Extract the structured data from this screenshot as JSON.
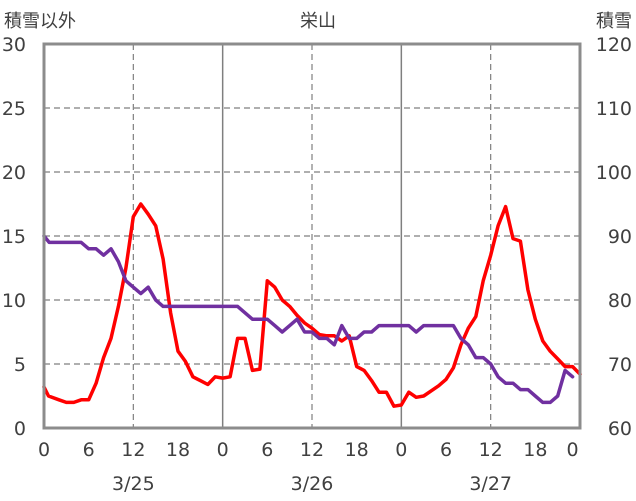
{
  "chart_data": {
    "type": "line",
    "title": "栄山",
    "y_left_label": "積雪以外",
    "y_right_label": "積雪",
    "y_left_range": [
      0,
      30
    ],
    "y_right_range": [
      60,
      120
    ],
    "y_left_ticks": [
      "0",
      "5",
      "10",
      "15",
      "20",
      "25",
      "30"
    ],
    "y_right_ticks": [
      "60",
      "70",
      "80",
      "90",
      "100",
      "110",
      "120"
    ],
    "x_range": [
      0,
      71
    ],
    "x_ticks": [
      {
        "hour": 0,
        "label": "0"
      },
      {
        "hour": 6,
        "label": "6"
      },
      {
        "hour": 12,
        "label": "12"
      },
      {
        "hour": 18,
        "label": "18"
      },
      {
        "hour": 24,
        "label": "0"
      },
      {
        "hour": 30,
        "label": "6"
      },
      {
        "hour": 36,
        "label": "12"
      },
      {
        "hour": 42,
        "label": "18"
      },
      {
        "hour": 48,
        "label": "0"
      },
      {
        "hour": 54,
        "label": "6"
      },
      {
        "hour": 60,
        "label": "12"
      },
      {
        "hour": 66,
        "label": "18"
      },
      {
        "hour": 71,
        "label": "0"
      }
    ],
    "dates": [
      {
        "hour": 12,
        "label": "3/25"
      },
      {
        "hour": 36,
        "label": "3/26"
      },
      {
        "hour": 60,
        "label": "3/27"
      }
    ],
    "day_boundaries": [
      24,
      48
    ],
    "six_hour_lines": [
      12,
      36,
      60
    ],
    "grid": true,
    "series": [
      {
        "axis": "left",
        "color": "#ff0000",
        "points": [
          [
            0,
            3.2
          ],
          [
            0.6,
            2.5
          ],
          [
            2,
            2.2
          ],
          [
            3,
            2.0
          ],
          [
            4,
            2.0
          ],
          [
            5,
            2.2
          ],
          [
            6,
            2.2
          ],
          [
            7,
            3.5
          ],
          [
            8,
            5.5
          ],
          [
            9,
            7.0
          ],
          [
            10,
            9.5
          ],
          [
            11,
            12.5
          ],
          [
            12,
            16.5
          ],
          [
            13,
            17.5
          ],
          [
            14,
            16.7
          ],
          [
            15,
            15.8
          ],
          [
            16,
            13.2
          ],
          [
            17,
            9.0
          ],
          [
            18,
            6.0
          ],
          [
            19,
            5.2
          ],
          [
            20,
            4.0
          ],
          [
            21,
            3.7
          ],
          [
            22,
            3.4
          ],
          [
            23,
            4.0
          ],
          [
            24,
            3.9
          ],
          [
            25,
            4.0
          ],
          [
            26,
            7.0
          ],
          [
            27,
            7.0
          ],
          [
            28,
            4.5
          ],
          [
            29,
            4.6
          ],
          [
            30,
            11.5
          ],
          [
            31,
            11.0
          ],
          [
            32,
            10.0
          ],
          [
            33,
            9.5
          ],
          [
            34,
            8.8
          ],
          [
            35,
            8.2
          ],
          [
            36,
            7.8
          ],
          [
            37,
            7.3
          ],
          [
            38,
            7.2
          ],
          [
            39,
            7.2
          ],
          [
            40,
            6.8
          ],
          [
            41,
            7.2
          ],
          [
            42,
            4.8
          ],
          [
            43,
            4.5
          ],
          [
            44,
            3.7
          ],
          [
            45,
            2.8
          ],
          [
            46,
            2.8
          ],
          [
            47,
            1.7
          ],
          [
            48,
            1.8
          ],
          [
            49,
            2.8
          ],
          [
            50,
            2.4
          ],
          [
            51,
            2.5
          ],
          [
            52,
            2.9
          ],
          [
            53,
            3.3
          ],
          [
            54,
            3.8
          ],
          [
            55,
            4.7
          ],
          [
            56,
            6.5
          ],
          [
            57,
            7.8
          ],
          [
            58,
            8.7
          ],
          [
            59,
            11.5
          ],
          [
            60,
            13.5
          ],
          [
            61,
            15.8
          ],
          [
            62,
            17.3
          ],
          [
            63,
            14.8
          ],
          [
            64,
            14.6
          ],
          [
            65,
            10.8
          ],
          [
            66,
            8.5
          ],
          [
            67,
            6.8
          ],
          [
            68,
            6.0
          ],
          [
            69,
            5.4
          ],
          [
            70,
            4.8
          ],
          [
            71,
            4.8
          ],
          [
            72,
            4.2
          ]
        ]
      },
      {
        "axis": "right",
        "color": "#7030a0",
        "points": [
          [
            0,
            90
          ],
          [
            0.7,
            89
          ],
          [
            2,
            89
          ],
          [
            3,
            89
          ],
          [
            4,
            89
          ],
          [
            5,
            89
          ],
          [
            6,
            88
          ],
          [
            7,
            88
          ],
          [
            8,
            87
          ],
          [
            9,
            88
          ],
          [
            10,
            86
          ],
          [
            11,
            83
          ],
          [
            12,
            82
          ],
          [
            13,
            81
          ],
          [
            14,
            82
          ],
          [
            15,
            80
          ],
          [
            16,
            79
          ],
          [
            17,
            79
          ],
          [
            18,
            79
          ],
          [
            19,
            79
          ],
          [
            20,
            79
          ],
          [
            21,
            79
          ],
          [
            22,
            79
          ],
          [
            23,
            79
          ],
          [
            24,
            79
          ],
          [
            25,
            79
          ],
          [
            26,
            79
          ],
          [
            27,
            78
          ],
          [
            28,
            77
          ],
          [
            29,
            77
          ],
          [
            30,
            77
          ],
          [
            31,
            76
          ],
          [
            32,
            75
          ],
          [
            33,
            76
          ],
          [
            34,
            77
          ],
          [
            35,
            75
          ],
          [
            36,
            75
          ],
          [
            37,
            74
          ],
          [
            38,
            74
          ],
          [
            39,
            73
          ],
          [
            40,
            76
          ],
          [
            41,
            74
          ],
          [
            42,
            74
          ],
          [
            43,
            75
          ],
          [
            44,
            75
          ],
          [
            45,
            76
          ],
          [
            46,
            76
          ],
          [
            47,
            76
          ],
          [
            48,
            76
          ],
          [
            49,
            76
          ],
          [
            50,
            75
          ],
          [
            51,
            76
          ],
          [
            52,
            76
          ],
          [
            53,
            76
          ],
          [
            54,
            76
          ],
          [
            55,
            76
          ],
          [
            56,
            74
          ],
          [
            57,
            73
          ],
          [
            58,
            71
          ],
          [
            59,
            71
          ],
          [
            60,
            70
          ],
          [
            61,
            68
          ],
          [
            62,
            67
          ],
          [
            63,
            67
          ],
          [
            64,
            66
          ],
          [
            65,
            66
          ],
          [
            66,
            65
          ],
          [
            67,
            64
          ],
          [
            68,
            64
          ],
          [
            69,
            65
          ],
          [
            70,
            69
          ],
          [
            71,
            68
          ]
        ]
      }
    ]
  }
}
